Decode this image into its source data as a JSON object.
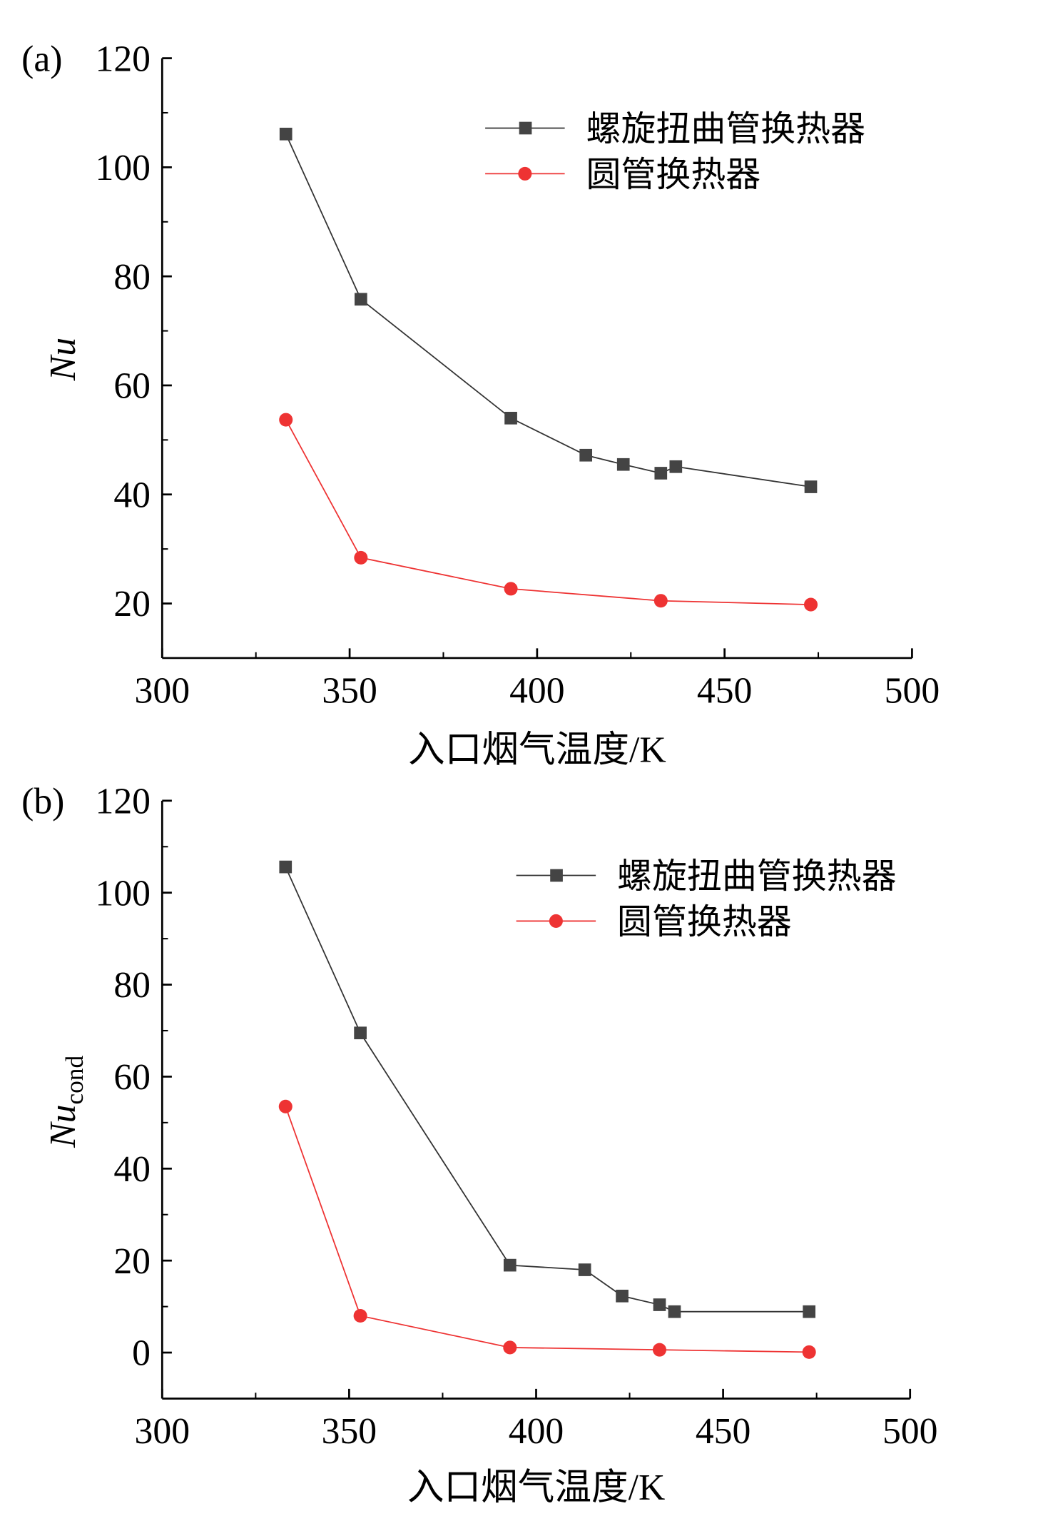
{
  "chart_data": [
    {
      "type": "line",
      "panel_label": "(a)",
      "xlabel": "入口烟气温度/K",
      "ylabel": "Nu",
      "ylabel_sub": "",
      "xlim": [
        300,
        500
      ],
      "ylim": [
        10,
        120
      ],
      "xticks": [
        300,
        350,
        400,
        450,
        500
      ],
      "yticks": [
        20,
        40,
        60,
        80,
        100,
        120
      ],
      "grid": false,
      "legend_position": "top-right",
      "series": [
        {
          "name": "螺旋扭曲管换热器",
          "color": "#333333",
          "marker": "square",
          "x": [
            333,
            353,
            393,
            413,
            423,
            433,
            437,
            473
          ],
          "y": [
            106.1,
            75.8,
            54.0,
            47.2,
            45.5,
            43.9,
            45.1,
            41.4
          ]
        },
        {
          "name": "圆管换热器",
          "color": "#ee3333",
          "marker": "circle",
          "x": [
            333,
            353,
            393,
            433,
            473
          ],
          "y": [
            53.7,
            28.4,
            22.7,
            20.5,
            19.8
          ]
        }
      ]
    },
    {
      "type": "line",
      "panel_label": "(b)",
      "xlabel": "入口烟气温度/K",
      "ylabel": "Nu",
      "ylabel_sub": "cond",
      "xlim": [
        300,
        500
      ],
      "ylim": [
        -10,
        120
      ],
      "xticks": [
        300,
        350,
        400,
        450,
        500
      ],
      "yticks": [
        0,
        20,
        40,
        60,
        80,
        100,
        120
      ],
      "grid": false,
      "legend_position": "top-right",
      "series": [
        {
          "name": "螺旋扭曲管换热器",
          "color": "#333333",
          "marker": "square",
          "x": [
            333,
            353,
            393,
            413,
            423,
            433,
            437,
            473
          ],
          "y": [
            105.6,
            69.5,
            19.0,
            18.0,
            12.3,
            10.4,
            8.9,
            8.9
          ]
        },
        {
          "name": "圆管换热器",
          "color": "#ee3333",
          "marker": "circle",
          "x": [
            333,
            353,
            393,
            433,
            473
          ],
          "y": [
            53.5,
            8.0,
            1.1,
            0.6,
            0.1
          ]
        }
      ]
    }
  ]
}
